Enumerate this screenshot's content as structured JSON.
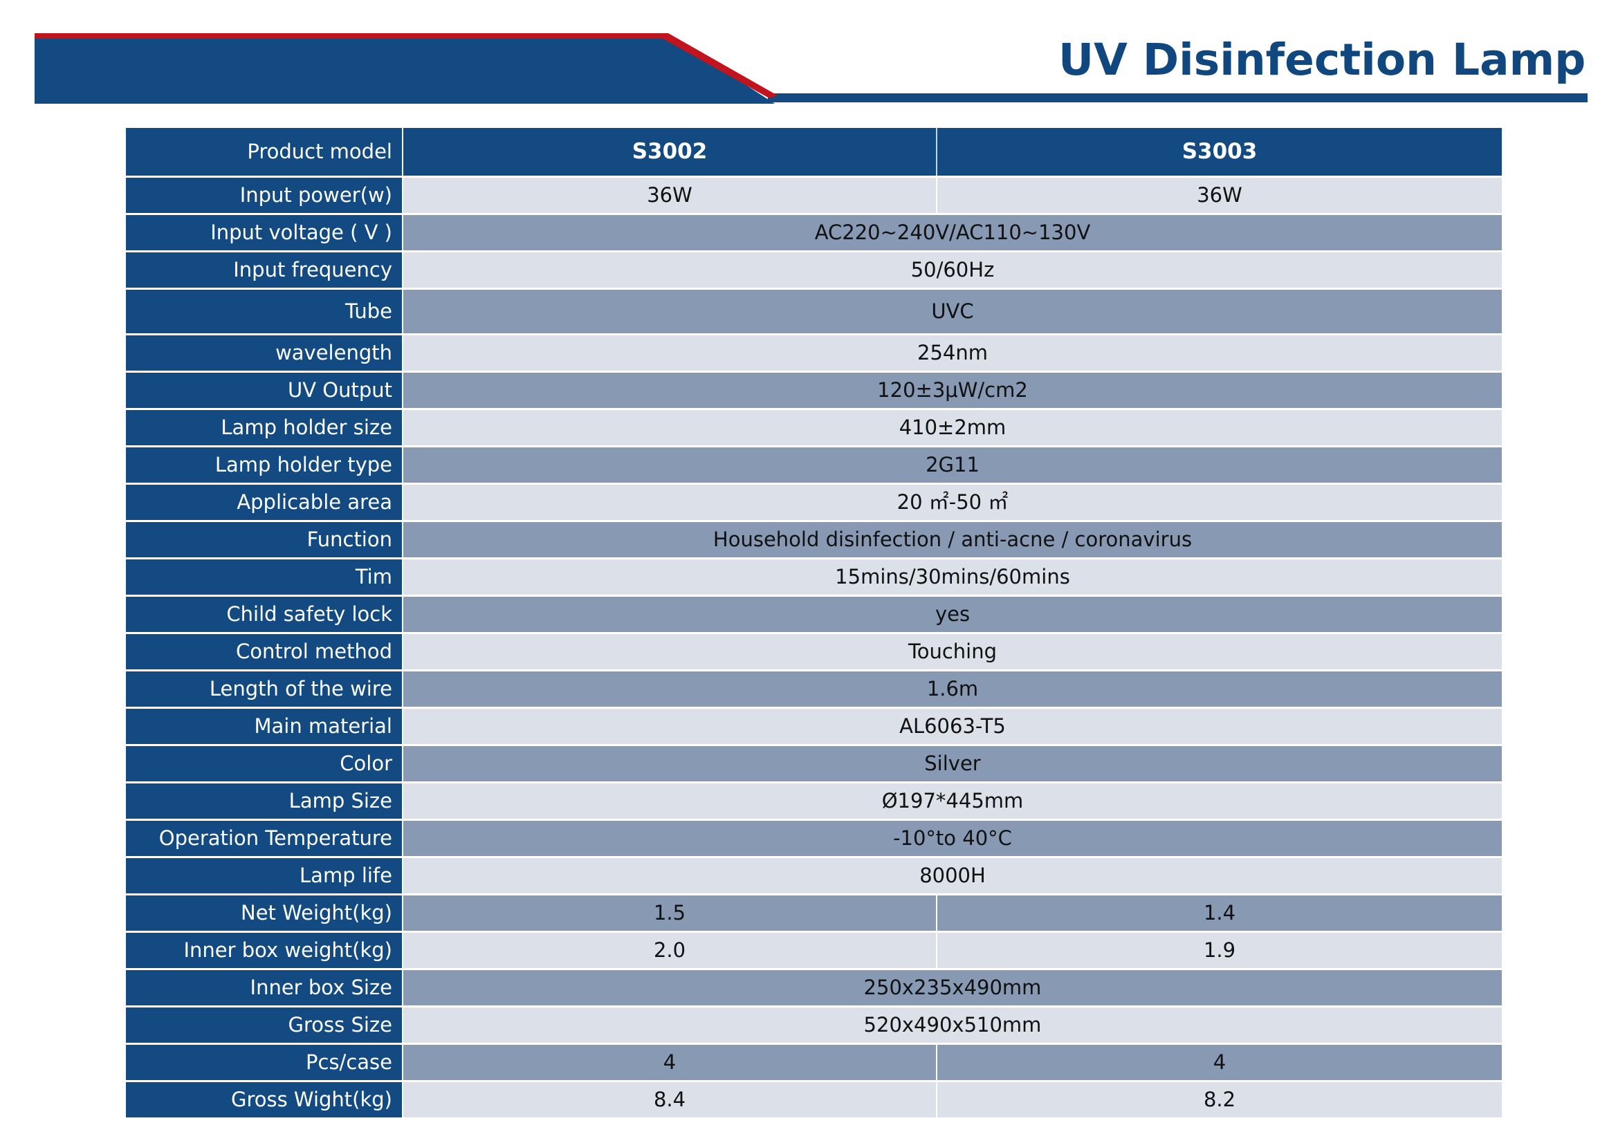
{
  "header": {
    "title": "UV Disinfection Lamp",
    "colors": {
      "banner": "#134a81",
      "accent": "#c0141e",
      "title": "#0f477e"
    }
  },
  "spec_table": {
    "models": [
      "S3002",
      "S3003"
    ],
    "rows": [
      {
        "label": "Product model",
        "values": [
          "S3002",
          "S3003"
        ],
        "header": true
      },
      {
        "label": "Input power(w)",
        "values": [
          "36W",
          "36W"
        ]
      },
      {
        "label": "Input voltage ( V )",
        "values": [
          "AC220~240V/AC110~130V"
        ]
      },
      {
        "label": "Input frequency",
        "values": [
          "50/60Hz"
        ]
      },
      {
        "label": "Tube",
        "values": [
          "UVC"
        ]
      },
      {
        "label": "wavelength",
        "values": [
          "254nm"
        ]
      },
      {
        "label": "UV Output",
        "values": [
          "120±3μW/cm2"
        ]
      },
      {
        "label": "Lamp holder size",
        "values": [
          "410±2mm"
        ]
      },
      {
        "label": "Lamp holder type",
        "values": [
          "2G11"
        ]
      },
      {
        "label": "Applicable area",
        "values": [
          "20 ㎡-50 ㎡"
        ]
      },
      {
        "label": "Function",
        "values": [
          "Household disinfection / anti-acne / coronavirus"
        ]
      },
      {
        "label": "Tim",
        "values": [
          "15mins/30mins/60mins"
        ]
      },
      {
        "label": "Child safety lock",
        "values": [
          "yes"
        ]
      },
      {
        "label": "Control method",
        "values": [
          "Touching"
        ]
      },
      {
        "label": "Length of the wire",
        "values": [
          "1.6m"
        ]
      },
      {
        "label": "Main material",
        "values": [
          "AL6063-T5"
        ]
      },
      {
        "label": "Color",
        "values": [
          "Silver"
        ]
      },
      {
        "label": "Lamp Size",
        "values": [
          "Ø197*445mm"
        ]
      },
      {
        "label": "Operation Temperature",
        "values": [
          "-10°to 40°C"
        ]
      },
      {
        "label": "Lamp life",
        "values": [
          "8000H"
        ]
      },
      {
        "label": "Net Weight(kg)",
        "values": [
          "1.5",
          "1.4"
        ]
      },
      {
        "label": "Inner box weight(kg)",
        "values": [
          "2.0",
          "1.9"
        ]
      },
      {
        "label": "Inner box Size",
        "values": [
          "250x235x490mm"
        ]
      },
      {
        "label": "Gross Size",
        "values": [
          "520x490x510mm"
        ]
      },
      {
        "label": "Pcs/case",
        "values": [
          "4",
          "4"
        ]
      },
      {
        "label": "Gross Wight(kg)",
        "values": [
          "8.4",
          "8.2"
        ]
      }
    ]
  }
}
